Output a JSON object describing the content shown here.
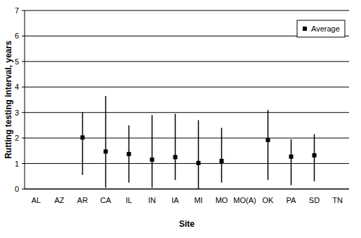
{
  "chart_data": {
    "type": "scatter",
    "xlabel": "Site",
    "ylabel": "Rutting testing interval, years",
    "categories": [
      "AL",
      "AZ",
      "AR",
      "CA",
      "IL",
      "IN",
      "IA",
      "MI",
      "MO",
      "MO(A)",
      "OK",
      "PA",
      "SD",
      "TN"
    ],
    "series": [
      {
        "name": "Average",
        "color": "#000000",
        "marker": "square",
        "values": [
          null,
          null,
          2.02,
          1.47,
          1.37,
          1.15,
          1.25,
          1.02,
          1.1,
          null,
          1.92,
          1.27,
          1.32,
          null
        ],
        "min": [
          null,
          null,
          0.55,
          0.05,
          0.25,
          0.05,
          0.35,
          0,
          0.25,
          null,
          0.35,
          0.15,
          0.3,
          null
        ],
        "max": [
          null,
          null,
          3.0,
          3.65,
          2.5,
          2.9,
          2.95,
          2.7,
          2.4,
          null,
          3.1,
          1.95,
          2.15,
          null
        ]
      }
    ],
    "ylim": [
      0,
      7
    ],
    "yticks": [
      0,
      1,
      2,
      3,
      4,
      5,
      6,
      7
    ],
    "grid": true,
    "legend": "top-right"
  }
}
